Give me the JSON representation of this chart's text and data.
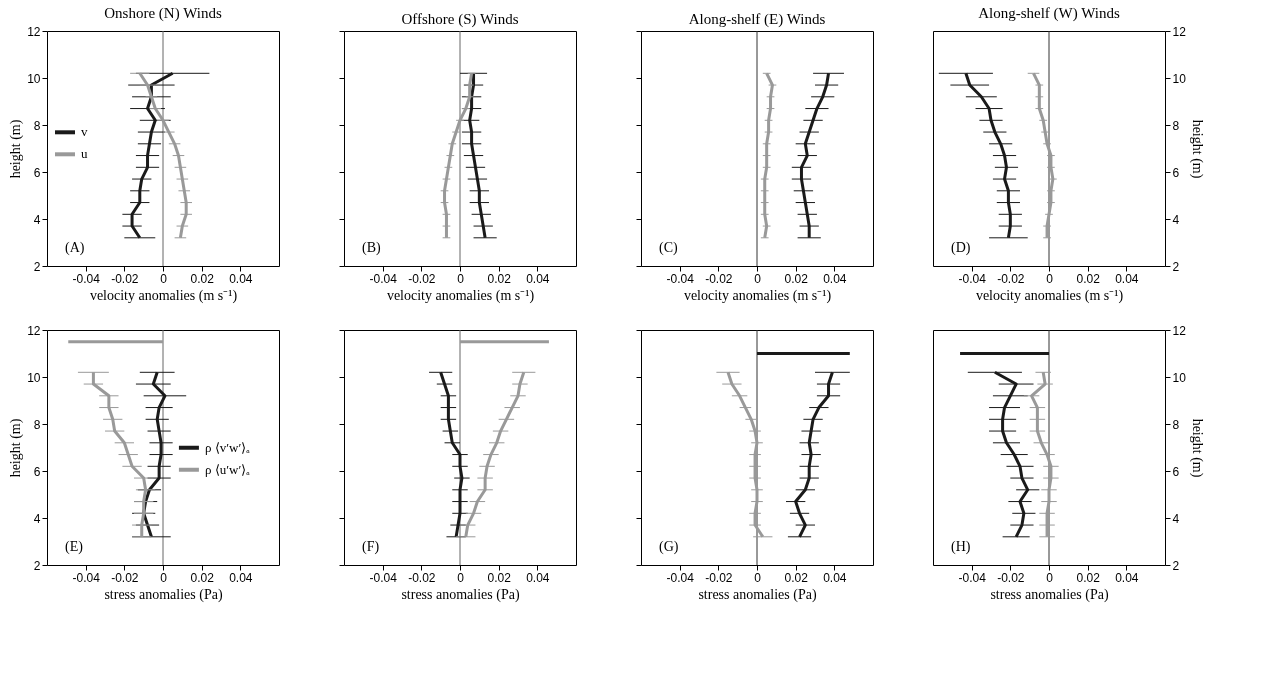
{
  "chart_data": [
    {
      "type": "line",
      "title": "Onshore (N) Winds",
      "xlabel": "velocity anomalies (m s⁻¹)",
      "ylabel": "height (m)",
      "xlim": [
        -0.06,
        0.06
      ],
      "xticks": [
        -0.04,
        -0.02,
        0,
        0.02,
        0.04
      ],
      "ylim": [
        2,
        12
      ],
      "yticks": [
        2,
        4,
        6,
        8,
        10,
        12
      ],
      "legend": "left",
      "annotations": [
        "(A)"
      ],
      "ref_lines": [
        {
          "axis": "x",
          "value": 0,
          "color": "#666666"
        }
      ],
      "series": [
        {
          "name": "v",
          "color": "#1a1a1a",
          "x": [
            -0.012,
            -0.016,
            -0.016,
            -0.012,
            -0.012,
            -0.011,
            -0.008,
            -0.008,
            -0.007,
            -0.006,
            -0.004,
            -0.008,
            -0.006,
            -0.006,
            0.005
          ],
          "values": [
            3.2,
            3.7,
            4.2,
            4.7,
            5.2,
            5.7,
            6.2,
            6.7,
            7.2,
            7.7,
            8.2,
            8.7,
            9.2,
            9.7,
            10.2
          ],
          "xerrors": [
            0.008,
            0.005,
            0.005,
            0.005,
            0.005,
            0.005,
            0.006,
            0.006,
            0.006,
            0.007,
            0.008,
            0.009,
            0.01,
            0.012,
            0.019
          ]
        },
        {
          "name": "u",
          "color": "#999999",
          "x": [
            0.009,
            0.01,
            0.012,
            0.012,
            0.011,
            0.01,
            0.009,
            0.008,
            0.006,
            0.003,
            0,
            -0.004,
            -0.006,
            -0.008,
            -0.012
          ],
          "values": [
            3.2,
            3.7,
            4.2,
            4.7,
            5.2,
            5.7,
            6.2,
            6.7,
            7.2,
            7.7,
            8.2,
            8.7,
            9.2,
            9.7,
            10.2
          ],
          "xerrors": [
            0.003,
            0.003,
            0.003,
            0.003,
            0.003,
            0.003,
            0.003,
            0.003,
            0.003,
            0.003,
            0.003,
            0.003,
            0.003,
            0.004,
            0.005
          ]
        }
      ]
    },
    {
      "type": "line",
      "title": "Offshore (S) Winds",
      "xlabel": "velocity anomalies (m s⁻¹)",
      "xlim": [
        -0.06,
        0.06
      ],
      "xticks": [
        -0.04,
        -0.02,
        0,
        0.02,
        0.04
      ],
      "ylim": [
        2,
        12
      ],
      "yticks": [
        2,
        4,
        6,
        8,
        10,
        12
      ],
      "tick_labels": "x",
      "annotations": [
        "(B)"
      ],
      "ref_lines": [
        {
          "axis": "x",
          "value": 0,
          "color": "#666666"
        }
      ],
      "series": [
        {
          "color": "#1a1a1a",
          "x": [
            0.013,
            0.012,
            0.011,
            0.01,
            0.01,
            0.009,
            0.008,
            0.007,
            0.006,
            0.006,
            0.005,
            0.006,
            0.006,
            0.007,
            0.007
          ],
          "values": [
            3.2,
            3.7,
            4.2,
            4.7,
            5.2,
            5.7,
            6.2,
            6.7,
            7.2,
            7.7,
            8.2,
            8.7,
            9.2,
            9.7,
            10.2
          ],
          "xerrors": [
            0.006,
            0.005,
            0.005,
            0.005,
            0.005,
            0.005,
            0.005,
            0.005,
            0.005,
            0.005,
            0.005,
            0.005,
            0.005,
            0.005,
            0.007
          ]
        },
        {
          "color": "#999999",
          "x": [
            -0.007,
            -0.007,
            -0.007,
            -0.008,
            -0.008,
            -0.007,
            -0.006,
            -0.005,
            -0.004,
            -0.002,
            0,
            0.003,
            0.005,
            0.005,
            0.006
          ],
          "values": [
            3.2,
            3.7,
            4.2,
            4.7,
            5.2,
            5.7,
            6.2,
            6.7,
            7.2,
            7.7,
            8.2,
            8.7,
            9.2,
            9.7,
            10.2
          ],
          "xerrors": [
            0.002,
            0.002,
            0.002,
            0.002,
            0.002,
            0.002,
            0.002,
            0.002,
            0.002,
            0.002,
            0.002,
            0.002,
            0.002,
            0.002,
            0.002
          ]
        }
      ]
    },
    {
      "type": "line",
      "title": "Along-shelf (E) Winds",
      "xlabel": "velocity anomalies (m s⁻¹)",
      "xlim": [
        -0.06,
        0.06
      ],
      "xticks": [
        -0.04,
        -0.02,
        0,
        0.02,
        0.04
      ],
      "ylim": [
        2,
        12
      ],
      "yticks": [
        2,
        4,
        6,
        8,
        10,
        12
      ],
      "tick_labels": "x",
      "annotations": [
        "(C)"
      ],
      "ref_lines": [
        {
          "axis": "x",
          "value": 0,
          "color": "#333333"
        }
      ],
      "series": [
        {
          "color": "#1a1a1a",
          "x": [
            0.027,
            0.027,
            0.026,
            0.025,
            0.024,
            0.023,
            0.023,
            0.026,
            0.025,
            0.027,
            0.029,
            0.031,
            0.034,
            0.036,
            0.037
          ],
          "values": [
            3.2,
            3.7,
            4.2,
            4.7,
            5.2,
            5.7,
            6.2,
            6.7,
            7.2,
            7.7,
            8.2,
            8.7,
            9.2,
            9.7,
            10.2
          ],
          "xerrors": [
            0.006,
            0.005,
            0.005,
            0.005,
            0.005,
            0.005,
            0.005,
            0.005,
            0.005,
            0.005,
            0.005,
            0.006,
            0.006,
            0.006,
            0.008
          ]
        },
        {
          "color": "#999999",
          "x": [
            0.004,
            0.005,
            0.004,
            0.004,
            0.004,
            0.004,
            0.005,
            0.005,
            0.005,
            0.006,
            0.006,
            0.007,
            0.007,
            0.008,
            0.005
          ],
          "values": [
            3.2,
            3.7,
            4.2,
            4.7,
            5.2,
            5.7,
            6.2,
            6.7,
            7.2,
            7.7,
            8.2,
            8.7,
            9.2,
            9.7,
            10.2
          ],
          "xerrors": [
            0.002,
            0.002,
            0.002,
            0.002,
            0.002,
            0.002,
            0.002,
            0.002,
            0.002,
            0.002,
            0.002,
            0.002,
            0.002,
            0.002,
            0.002
          ]
        }
      ]
    },
    {
      "type": "line",
      "title": "Along-shelf (W) Winds",
      "xlabel": "velocity anomalies (m s⁻¹)",
      "y2label": "height (m)",
      "xlim": [
        -0.06,
        0.06
      ],
      "xticks": [
        -0.04,
        -0.02,
        0,
        0.02,
        0.04
      ],
      "y2lim": [
        2,
        12
      ],
      "y2ticks": [
        2,
        4,
        6,
        8,
        10,
        12
      ],
      "annotations": [
        "(D)"
      ],
      "ref_lines": [
        {
          "axis": "x",
          "value": 0,
          "color": "#333333"
        }
      ],
      "series": [
        {
          "axis": "y2",
          "color": "#1a1a1a",
          "x": [
            -0.021,
            -0.02,
            -0.02,
            -0.021,
            -0.021,
            -0.023,
            -0.022,
            -0.023,
            -0.025,
            -0.028,
            -0.03,
            -0.031,
            -0.035,
            -0.041,
            -0.043
          ],
          "values": [
            3.2,
            3.7,
            4.2,
            4.7,
            5.2,
            5.7,
            6.2,
            6.7,
            7.2,
            7.7,
            8.2,
            8.7,
            9.2,
            9.7,
            10.2
          ],
          "xerrors": [
            0.01,
            0.006,
            0.006,
            0.006,
            0.006,
            0.006,
            0.006,
            0.006,
            0.006,
            0.006,
            0.006,
            0.007,
            0.008,
            0.01,
            0.014
          ]
        },
        {
          "axis": "y2",
          "color": "#999999",
          "x": [
            -0.001,
            -0.001,
            0,
            0.001,
            0.001,
            0.002,
            0.001,
            0.001,
            -0.001,
            -0.002,
            -0.003,
            -0.005,
            -0.005,
            -0.005,
            -0.008
          ],
          "values": [
            3.2,
            3.7,
            4.2,
            4.7,
            5.2,
            5.7,
            6.2,
            6.7,
            7.2,
            7.7,
            8.2,
            8.7,
            9.2,
            9.7,
            10.2
          ],
          "xerrors": [
            0.002,
            0.002,
            0.002,
            0.002,
            0.002,
            0.002,
            0.002,
            0.002,
            0.002,
            0.002,
            0.002,
            0.002,
            0.002,
            0.002,
            0.003
          ]
        }
      ]
    },
    {
      "type": "line",
      "xlabel": "stress anomalies (Pa)",
      "ylabel": "height (m)",
      "xlim": [
        -0.06,
        0.06
      ],
      "xticks": [
        -0.04,
        -0.02,
        0,
        0.02,
        0.04
      ],
      "ylim": [
        2,
        12
      ],
      "yticks": [
        2,
        4,
        6,
        8,
        10,
        12
      ],
      "legend": "right",
      "annotations": [
        "(E)"
      ],
      "ref_lines": [
        {
          "axis": "x",
          "value": 0,
          "color": "#666666"
        }
      ],
      "series": [
        {
          "name": "ρ ⟨v′w′⟩ₐ",
          "color": "#1a1a1a",
          "x": [
            -0.006,
            -0.008,
            -0.01,
            -0.009,
            -0.007,
            -0.002,
            -0.002,
            -0.001,
            -0.001,
            -0.002,
            -0.003,
            -0.002,
            0.001,
            -0.005,
            -0.003
          ],
          "values": [
            3.2,
            3.7,
            4.2,
            4.7,
            5.2,
            5.7,
            6.2,
            6.7,
            7.2,
            7.7,
            8.2,
            8.7,
            9.2,
            9.7,
            10.2
          ],
          "xerrors": [
            0.01,
            0.006,
            0.006,
            0.006,
            0.006,
            0.006,
            0.006,
            0.006,
            0.006,
            0.006,
            0.006,
            0.007,
            0.011,
            0.009,
            0.009
          ]
        },
        {
          "name": "ρ ⟨u′w′⟩ₐ",
          "color": "#999999",
          "x": [
            -0.011,
            -0.011,
            -0.01,
            -0.01,
            -0.009,
            -0.01,
            -0.016,
            -0.018,
            -0.02,
            -0.025,
            -0.026,
            -0.028,
            -0.028,
            -0.036,
            -0.036
          ],
          "values": [
            3.2,
            3.7,
            4.2,
            4.7,
            5.2,
            5.7,
            6.2,
            6.7,
            7.2,
            7.7,
            8.2,
            8.7,
            9.2,
            9.7,
            10.2
          ],
          "xerrors": [
            0.005,
            0.005,
            0.005,
            0.005,
            0.005,
            0.005,
            0.005,
            0.005,
            0.005,
            0.005,
            0.005,
            0.005,
            0.005,
            0.005,
            0.008
          ]
        },
        {
          "color": "#999999",
          "x": [
            0,
            -0.049
          ],
          "values": [
            11.5,
            11.5
          ]
        }
      ]
    },
    {
      "type": "line",
      "xlabel": "stress anomalies (Pa)",
      "xlim": [
        -0.06,
        0.06
      ],
      "xticks": [
        -0.04,
        -0.02,
        0,
        0.02,
        0.04
      ],
      "ylim": [
        2,
        12
      ],
      "yticks": [
        2,
        4,
        6,
        8,
        10,
        12
      ],
      "tick_labels": "x",
      "annotations": [
        "(F)"
      ],
      "ref_lines": [
        {
          "axis": "x",
          "value": 0,
          "color": "#666666"
        }
      ],
      "series": [
        {
          "color": "#1a1a1a",
          "x": [
            -0.002,
            -0.001,
            0,
            0,
            0,
            0.001,
            0,
            0,
            -0.004,
            -0.005,
            -0.006,
            -0.006,
            -0.006,
            -0.008,
            -0.01
          ],
          "values": [
            3.2,
            3.7,
            4.2,
            4.7,
            5.2,
            5.7,
            6.2,
            6.7,
            7.2,
            7.7,
            8.2,
            8.7,
            9.2,
            9.7,
            10.2
          ],
          "xerrors": [
            0.005,
            0.004,
            0.004,
            0.004,
            0.004,
            0.004,
            0.004,
            0.004,
            0.004,
            0.004,
            0.004,
            0.004,
            0.004,
            0.004,
            0.006
          ]
        },
        {
          "color": "#999999",
          "x": [
            0.003,
            0.004,
            0.007,
            0.009,
            0.013,
            0.013,
            0.014,
            0.016,
            0.019,
            0.021,
            0.024,
            0.027,
            0.03,
            0.031,
            0.033
          ],
          "values": [
            3.2,
            3.7,
            4.2,
            4.7,
            5.2,
            5.7,
            6.2,
            6.7,
            7.2,
            7.7,
            8.2,
            8.7,
            9.2,
            9.7,
            10.2
          ],
          "xerrors": [
            0.005,
            0.004,
            0.004,
            0.004,
            0.004,
            0.004,
            0.004,
            0.004,
            0.004,
            0.004,
            0.004,
            0.004,
            0.004,
            0.004,
            0.006
          ]
        },
        {
          "color": "#999999",
          "x": [
            0,
            0.046
          ],
          "values": [
            11.5,
            11.5
          ]
        }
      ]
    },
    {
      "type": "line",
      "xlabel": "stress anomalies (Pa)",
      "xlim": [
        -0.06,
        0.06
      ],
      "xticks": [
        -0.04,
        -0.02,
        0,
        0.02,
        0.04
      ],
      "ylim": [
        2,
        12
      ],
      "yticks": [
        2,
        4,
        6,
        8,
        10,
        12
      ],
      "tick_labels": "x",
      "annotations": [
        "(G)"
      ],
      "ref_lines": [
        {
          "axis": "x",
          "value": 0,
          "color": "#333333"
        }
      ],
      "series": [
        {
          "color": "#1a1a1a",
          "x": [
            0.022,
            0.025,
            0.022,
            0.02,
            0.025,
            0.027,
            0.027,
            0.028,
            0.027,
            0.028,
            0.029,
            0.032,
            0.037,
            0.037,
            0.039
          ],
          "values": [
            3.2,
            3.7,
            4.2,
            4.7,
            5.2,
            5.7,
            6.2,
            6.7,
            7.2,
            7.7,
            8.2,
            8.7,
            9.2,
            9.7,
            10.2
          ],
          "xerrors": [
            0.006,
            0.005,
            0.005,
            0.005,
            0.005,
            0.005,
            0.005,
            0.005,
            0.005,
            0.005,
            0.005,
            0.005,
            0.006,
            0.006,
            0.009
          ]
        },
        {
          "color": "#999999",
          "x": [
            0.003,
            -0.001,
            -0.001,
            0,
            0,
            -0.001,
            -0.001,
            -0.001,
            0,
            -0.001,
            -0.003,
            -0.006,
            -0.009,
            -0.013,
            -0.015
          ],
          "values": [
            3.2,
            3.7,
            4.2,
            4.7,
            5.2,
            5.7,
            6.2,
            6.7,
            7.2,
            7.7,
            8.2,
            8.7,
            9.2,
            9.7,
            10.2
          ],
          "xerrors": [
            0.005,
            0.003,
            0.003,
            0.003,
            0.003,
            0.003,
            0.003,
            0.003,
            0.003,
            0.003,
            0.003,
            0.003,
            0.004,
            0.005,
            0.006
          ]
        },
        {
          "color": "#1a1a1a",
          "x": [
            0,
            0.048
          ],
          "values": [
            11,
            11
          ]
        }
      ]
    },
    {
      "type": "line",
      "xlabel": "stress anomalies (Pa)",
      "y2label": "height (m)",
      "xlim": [
        -0.06,
        0.06
      ],
      "xticks": [
        -0.04,
        -0.02,
        0,
        0.02,
        0.04
      ],
      "y2lim": [
        2,
        12
      ],
      "y2ticks": [
        2,
        4,
        6,
        8,
        10,
        12
      ],
      "annotations": [
        "(H)"
      ],
      "ref_lines": [
        {
          "axis": "x",
          "value": 0,
          "color": "#333333"
        }
      ],
      "series": [
        {
          "axis": "y2",
          "color": "#1a1a1a",
          "x": [
            -0.017,
            -0.014,
            -0.013,
            -0.015,
            -0.011,
            -0.014,
            -0.015,
            -0.018,
            -0.022,
            -0.024,
            -0.024,
            -0.023,
            -0.02,
            -0.017,
            -0.028
          ],
          "values": [
            3.2,
            3.7,
            4.2,
            4.7,
            5.2,
            5.7,
            6.2,
            6.7,
            7.2,
            7.7,
            8.2,
            8.7,
            9.2,
            9.7,
            10.2
          ],
          "xerrors": [
            0.007,
            0.006,
            0.006,
            0.006,
            0.006,
            0.006,
            0.007,
            0.007,
            0.007,
            0.007,
            0.007,
            0.008,
            0.009,
            0.009,
            0.014
          ]
        },
        {
          "axis": "y2",
          "color": "#999999",
          "x": [
            -0.001,
            -0.001,
            -0.001,
            0,
            0,
            0.001,
            0.001,
            -0.001,
            -0.004,
            -0.006,
            -0.006,
            -0.006,
            -0.009,
            -0.002,
            -0.003
          ],
          "values": [
            3.2,
            3.7,
            4.2,
            4.7,
            5.2,
            5.7,
            6.2,
            6.7,
            7.2,
            7.7,
            8.2,
            8.7,
            9.2,
            9.7,
            10.2
          ],
          "xerrors": [
            0.004,
            0.004,
            0.004,
            0.004,
            0.004,
            0.004,
            0.004,
            0.004,
            0.004,
            0.004,
            0.004,
            0.004,
            0.004,
            0.004,
            0.004
          ]
        },
        {
          "axis": "y2",
          "color": "#1a1a1a",
          "x": [
            0,
            -0.046
          ],
          "values": [
            11,
            11
          ]
        }
      ]
    }
  ]
}
